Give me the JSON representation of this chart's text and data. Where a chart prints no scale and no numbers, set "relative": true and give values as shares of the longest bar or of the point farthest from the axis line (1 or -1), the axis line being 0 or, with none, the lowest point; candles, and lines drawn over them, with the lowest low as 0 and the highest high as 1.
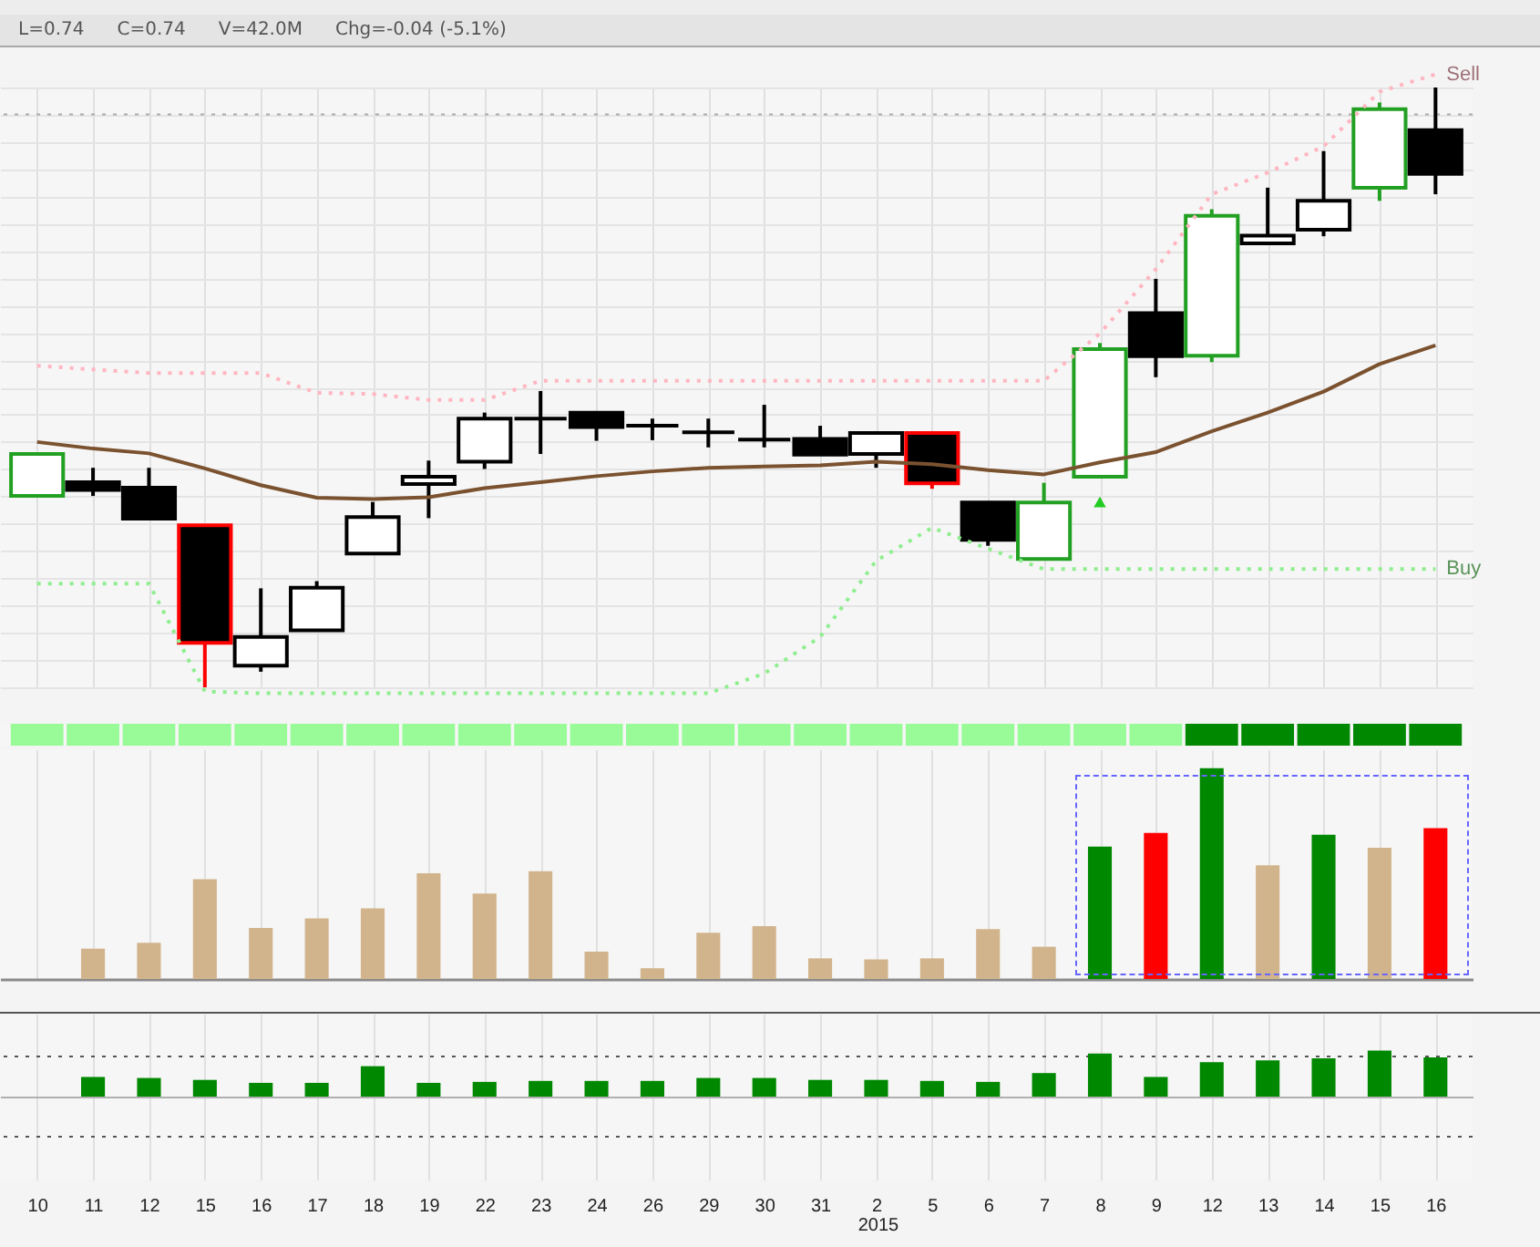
{
  "chart_data": [
    {
      "type": "candlestick",
      "categories": [
        "10",
        "11",
        "12",
        "15",
        "16",
        "17",
        "18",
        "19",
        "22",
        "23",
        "24",
        "26",
        "29",
        "30",
        "31",
        "2",
        "5",
        "6",
        "7",
        "8",
        "9",
        "12",
        "13",
        "14",
        "15",
        "16"
      ],
      "relative": true,
      "ohlc": [
        [
          0.319,
          0.389,
          0.319,
          0.389
        ],
        [
          0.342,
          0.366,
          0.319,
          0.329
        ],
        [
          0.333,
          0.366,
          0.281,
          0.281
        ],
        [
          0.27,
          0.27,
          0,
          0.074
        ],
        [
          0.036,
          0.165,
          0.026,
          0.084
        ],
        [
          0.095,
          0.177,
          0.095,
          0.166
        ],
        [
          0.223,
          0.309,
          0.223,
          0.284
        ],
        [
          0.339,
          0.378,
          0.282,
          0.351
        ],
        [
          0.376,
          0.458,
          0.364,
          0.448
        ],
        [
          0.448,
          0.494,
          0.389,
          0.448
        ],
        [
          0.458,
          0.458,
          0.411,
          0.434
        ],
        [
          0.436,
          0.448,
          0.412,
          0.436
        ],
        [
          0.425,
          0.448,
          0.4,
          0.425
        ],
        [
          0.413,
          0.471,
          0.4,
          0.413
        ],
        [
          0.414,
          0.436,
          0.388,
          0.388
        ],
        [
          0.389,
          0.424,
          0.366,
          0.424
        ],
        [
          0.424,
          0.424,
          0.331,
          0.34
        ],
        [
          0.308,
          0.308,
          0.236,
          0.246
        ],
        [
          0.214,
          0.341,
          0.214,
          0.308
        ],
        [
          0.351,
          0.574,
          0.351,
          0.564
        ],
        [
          0.624,
          0.681,
          0.517,
          0.552
        ],
        [
          0.553,
          0.797,
          0.542,
          0.786
        ],
        [
          0.74,
          0.833,
          0.74,
          0.753
        ],
        [
          0.763,
          0.894,
          0.752,
          0.811
        ],
        [
          0.833,
          0.975,
          0.811,
          0.964
        ],
        [
          0.929,
          1,
          0.822,
          0.856
        ]
      ],
      "colors": [
        "#22a022",
        "#000000",
        "#000000",
        "#ff0000",
        "#000000",
        "#000000",
        "#000000",
        "#000000",
        "#000000",
        "#000000",
        "#000000",
        "#000000",
        "#000000",
        "#000000",
        "#000000",
        "#000000",
        "#ff0000",
        "#000000",
        "#22a022",
        "#22a022",
        "#000000",
        "#22a022",
        "#000000",
        "#000000",
        "#22a022",
        "#000000"
      ],
      "series": [
        {
          "type": "line",
          "color": "#7b5230",
          "line_style": "solid",
          "values": [
            0.409,
            0.398,
            0.39,
            0.365,
            0.337,
            0.316,
            0.314,
            0.317,
            0.332,
            0.342,
            0.352,
            0.36,
            0.366,
            0.368,
            0.37,
            0.376,
            0.372,
            0.362,
            0.355,
            0.375,
            0.392,
            0.427,
            0.458,
            0.493,
            0.539,
            0.57
          ]
        },
        {
          "type": "line",
          "name": "Sell",
          "color": "#ffb6c1",
          "line_style": "dotted",
          "values": [
            0.536,
            0.53,
            0.524,
            0.524,
            0.524,
            0.491,
            0.489,
            0.479,
            0.479,
            0.511,
            0.511,
            0.511,
            0.511,
            0.511,
            0.511,
            0.511,
            0.511,
            0.511,
            0.511,
            0.59,
            0.697,
            0.822,
            0.858,
            0.902,
            0.993,
            1.022
          ]
        },
        {
          "type": "line",
          "name": "Buy",
          "color": "#90ee90",
          "line_style": "dotted",
          "values": [
            0.173,
            0.173,
            0.173,
            -0.007,
            -0.01,
            -0.01,
            -0.01,
            -0.01,
            -0.01,
            -0.01,
            -0.01,
            -0.01,
            -0.01,
            0.023,
            0.084,
            0.211,
            0.266,
            0.231,
            0.197,
            0.197,
            0.197,
            0.197,
            0.197,
            0.197,
            0.197,
            0.197
          ]
        },
        {
          "type": "scatter",
          "color": "#22cc22",
          "marker": "triangle",
          "values": [
            null,
            null,
            null,
            null,
            null,
            null,
            null,
            null,
            null,
            null,
            null,
            null,
            null,
            null,
            null,
            null,
            null,
            null,
            null,
            0.309,
            null,
            null,
            null,
            null,
            null,
            null
          ]
        }
      ],
      "ref_lines": [
        {
          "axis": "y",
          "value": 0.955,
          "color": "#aaaaaa",
          "line_style": "dotted"
        }
      ],
      "grid": true,
      "tick_labels": false,
      "annotations": [
        "L=0.74",
        "C=0.74",
        "V=42.0M",
        "Chg=-0.04 (-5.1%)"
      ]
    },
    {
      "type": "bar",
      "categories": [
        "10",
        "11",
        "12",
        "15",
        "16",
        "17",
        "18",
        "19",
        "22",
        "23",
        "24",
        "26",
        "29",
        "30",
        "31",
        "2",
        "5",
        "6",
        "7",
        "8",
        "9",
        "12",
        "13",
        "14",
        "15",
        "16"
      ],
      "relative": true,
      "values": [
        1,
        1,
        1,
        1,
        1,
        1,
        1,
        1,
        1,
        1,
        1,
        1,
        1,
        1,
        1,
        1,
        1,
        1,
        1,
        1,
        1,
        1,
        1,
        1,
        1,
        1
      ],
      "colors": [
        "#98fb98",
        "#98fb98",
        "#98fb98",
        "#98fb98",
        "#98fb98",
        "#98fb98",
        "#98fb98",
        "#98fb98",
        "#98fb98",
        "#98fb98",
        "#98fb98",
        "#98fb98",
        "#98fb98",
        "#98fb98",
        "#98fb98",
        "#98fb98",
        "#98fb98",
        "#98fb98",
        "#98fb98",
        "#98fb98",
        "#98fb98",
        "#008800",
        "#008800",
        "#008800",
        "#008800",
        "#008800"
      ],
      "tick_labels": false
    },
    {
      "type": "bar",
      "categories": [
        "10",
        "11",
        "12",
        "15",
        "16",
        "17",
        "18",
        "19",
        "22",
        "23",
        "24",
        "26",
        "29",
        "30",
        "31",
        "2",
        "5",
        "6",
        "7",
        "8",
        "9",
        "12",
        "13",
        "14",
        "15",
        "16"
      ],
      "relative": true,
      "values": [
        null,
        0.144,
        0.172,
        0.474,
        0.242,
        0.288,
        0.335,
        0.502,
        0.405,
        0.512,
        0.13,
        0.051,
        0.219,
        0.251,
        0.098,
        0.093,
        0.098,
        0.237,
        0.153,
        0.628,
        0.693,
        1,
        0.54,
        0.684,
        0.623,
        0.716
      ],
      "colors": [
        null,
        "#d2b48c",
        "#d2b48c",
        "#d2b48c",
        "#d2b48c",
        "#d2b48c",
        "#d2b48c",
        "#d2b48c",
        "#d2b48c",
        "#d2b48c",
        "#d2b48c",
        "#d2b48c",
        "#d2b48c",
        "#d2b48c",
        "#d2b48c",
        "#d2b48c",
        "#d2b48c",
        "#d2b48c",
        "#d2b48c",
        "#008800",
        "#ff0000",
        "#008800",
        "#d2b48c",
        "#008800",
        "#d2b48c",
        "#ff0000"
      ],
      "grid": "x",
      "tick_labels": false
    },
    {
      "type": "bar",
      "categories": [
        "10",
        "11",
        "12",
        "15",
        "16",
        "17",
        "18",
        "19",
        "22",
        "23",
        "24",
        "26",
        "29",
        "30",
        "31",
        "2",
        "5",
        "6",
        "7",
        "8",
        "9",
        "12",
        "13",
        "14",
        "15",
        "16"
      ],
      "relative": true,
      "values": [
        null,
        0.426,
        0.404,
        0.362,
        0.298,
        0.298,
        0.66,
        0.298,
        0.319,
        0.34,
        0.34,
        0.34,
        0.404,
        0.404,
        0.362,
        0.362,
        0.34,
        0.319,
        0.511,
        0.936,
        0.426,
        0.745,
        0.787,
        0.83,
        1,
        0.851
      ],
      "color": "#008800",
      "ref_lines": [
        {
          "axis": "y",
          "value": 0.87,
          "color": "#555555",
          "line_style": "dotted"
        },
        {
          "axis": "y",
          "value": -0.87,
          "color": "#555555",
          "line_style": "dotted"
        }
      ],
      "grid": "x",
      "tick_labels": "x",
      "annotations": [
        "2015"
      ]
    }
  ]
}
